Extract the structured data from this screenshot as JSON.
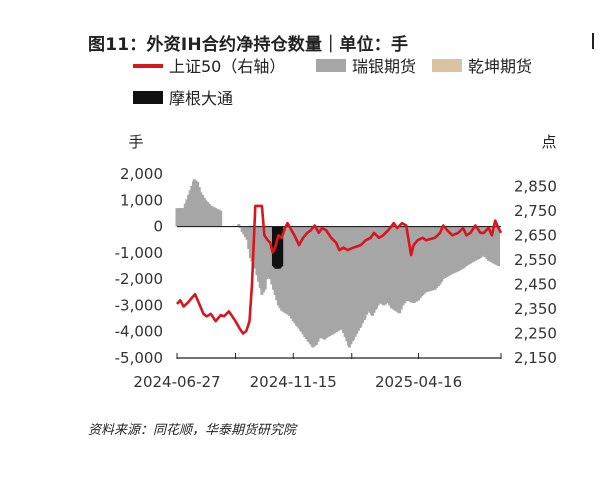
{
  "title": "图11：外资IH合约净持仓数量｜单位：手",
  "source": "资料来源：同花顺，华泰期货研究院",
  "chart_data": {
    "type": "bar+line",
    "left_axis_label": "手",
    "right_axis_label": "点",
    "ylim_left": [
      -5000,
      2000
    ],
    "yticks_left": [
      "2,000",
      "1,000",
      "0",
      "-1,000",
      "-2,000",
      "-3,000",
      "-4,000",
      "-5,000"
    ],
    "ylim_right": [
      2150,
      2900
    ],
    "yticks_right": [
      "2,850",
      "2,750",
      "2,650",
      "2,550",
      "2,450",
      "2,350",
      "2,250",
      "2,150"
    ],
    "x_ticks": [
      "2024-06-27",
      "2024-11-15",
      "2025-04-16"
    ],
    "x_range": [
      "2024-06-27",
      "2025-07-25"
    ],
    "legend": [
      {
        "name": "上证50（右轴）",
        "color": "#d7161e",
        "kind": "line"
      },
      {
        "name": "瑞银期货",
        "color": "#a6a6a6",
        "kind": "bar"
      },
      {
        "name": "乾坤期货",
        "color": "#d9c3a0",
        "kind": "bar"
      },
      {
        "name": "摩根大通",
        "color": "#111111",
        "kind": "bar"
      }
    ],
    "series_bar_ubs": [
      [
        "2024-06-27",
        700
      ],
      [
        "2024-07-02",
        700
      ],
      [
        "2024-07-05",
        700
      ],
      [
        "2024-07-18",
        1800
      ],
      [
        "2024-07-22",
        1700
      ],
      [
        "2024-07-26",
        1300
      ],
      [
        "2024-08-01",
        1000
      ],
      [
        "2024-08-07",
        800
      ],
      [
        "2024-08-13",
        700
      ],
      [
        "2024-08-19",
        600
      ],
      [
        "2024-09-10",
        100
      ],
      [
        "2024-09-14",
        -200
      ],
      [
        "2024-09-20",
        -500
      ],
      [
        "2024-09-24",
        -1200
      ],
      [
        "2024-09-30",
        -1600
      ],
      [
        "2024-10-08",
        -2600
      ],
      [
        "2024-10-12",
        -2400
      ],
      [
        "2024-10-15",
        -1800
      ],
      [
        "2024-10-18",
        -2000
      ],
      [
        "2024-10-24",
        -2600
      ],
      [
        "2024-10-28",
        -3000
      ],
      [
        "2024-11-01",
        -3200
      ],
      [
        "2024-11-06",
        -3300
      ],
      [
        "2024-11-11",
        -3400
      ],
      [
        "2024-11-15",
        -3600
      ],
      [
        "2024-11-20",
        -3800
      ],
      [
        "2024-11-25",
        -4000
      ],
      [
        "2024-11-29",
        -4200
      ],
      [
        "2024-12-04",
        -4400
      ],
      [
        "2024-12-09",
        -4600
      ],
      [
        "2024-12-13",
        -4500
      ],
      [
        "2024-12-18",
        -4200
      ],
      [
        "2024-12-23",
        -4300
      ],
      [
        "2024-12-27",
        -4200
      ],
      [
        "2025-01-02",
        -4100
      ],
      [
        "2025-01-07",
        -4000
      ],
      [
        "2025-01-13",
        -3900
      ],
      [
        "2025-01-17",
        -4200
      ],
      [
        "2025-01-22",
        -4600
      ],
      [
        "2025-01-27",
        -4300
      ],
      [
        "2025-02-05",
        -3800
      ],
      [
        "2025-02-10",
        -3500
      ],
      [
        "2025-02-14",
        -3200
      ],
      [
        "2025-02-19",
        -3400
      ],
      [
        "2025-02-24",
        -3100
      ],
      [
        "2025-02-28",
        -2900
      ],
      [
        "2025-03-05",
        -3000
      ],
      [
        "2025-03-10",
        -2900
      ],
      [
        "2025-03-14",
        -3100
      ],
      [
        "2025-03-19",
        -3200
      ],
      [
        "2025-03-24",
        -3300
      ],
      [
        "2025-03-28",
        -3000
      ],
      [
        "2025-04-02",
        -2800
      ],
      [
        "2025-04-08",
        -2900
      ],
      [
        "2025-04-11",
        -2900
      ],
      [
        "2025-04-16",
        -2800
      ],
      [
        "2025-04-21",
        -2600
      ],
      [
        "2025-04-25",
        -2500
      ],
      [
        "2025-05-06",
        -2400
      ],
      [
        "2025-05-12",
        -2200
      ],
      [
        "2025-05-16",
        -2000
      ],
      [
        "2025-05-21",
        -1900
      ],
      [
        "2025-05-27",
        -1800
      ],
      [
        "2025-06-03",
        -1700
      ],
      [
        "2025-06-09",
        -1600
      ],
      [
        "2025-06-13",
        -1500
      ],
      [
        "2025-06-18",
        -1400
      ],
      [
        "2025-06-24",
        -1300
      ],
      [
        "2025-06-30",
        -1200
      ],
      [
        "2025-07-04",
        -1100
      ],
      [
        "2025-07-10",
        -1300
      ],
      [
        "2025-07-16",
        -1400
      ],
      [
        "2025-07-22",
        -1500
      ]
    ],
    "series_bar_jpm": [
      [
        "2024-10-22",
        -1500
      ],
      [
        "2024-10-25",
        -1600
      ],
      [
        "2024-10-29",
        -1600
      ],
      [
        "2024-11-01",
        -1500
      ]
    ],
    "series_bar_qiankun": [],
    "series_line_sse50": [
      [
        "2024-06-27",
        2370
      ],
      [
        "2024-07-01",
        2385
      ],
      [
        "2024-07-05",
        2360
      ],
      [
        "2024-07-10",
        2375
      ],
      [
        "2024-07-15",
        2395
      ],
      [
        "2024-07-19",
        2410
      ],
      [
        "2024-07-24",
        2370
      ],
      [
        "2024-07-29",
        2330
      ],
      [
        "2024-08-02",
        2320
      ],
      [
        "2024-08-07",
        2330
      ],
      [
        "2024-08-13",
        2300
      ],
      [
        "2024-08-19",
        2325
      ],
      [
        "2024-08-23",
        2320
      ],
      [
        "2024-08-29",
        2340
      ],
      [
        "2024-09-02",
        2320
      ],
      [
        "2024-09-06",
        2300
      ],
      [
        "2024-09-11",
        2270
      ],
      [
        "2024-09-15",
        2250
      ],
      [
        "2024-09-19",
        2260
      ],
      [
        "2024-09-23",
        2300
      ],
      [
        "2024-09-26",
        2450
      ],
      [
        "2024-09-30",
        2770
      ],
      [
        "2024-10-08",
        2770
      ],
      [
        "2024-10-11",
        2650
      ],
      [
        "2024-10-15",
        2630
      ],
      [
        "2024-10-18",
        2620
      ],
      [
        "2024-10-21",
        2580
      ],
      [
        "2024-10-24",
        2600
      ],
      [
        "2024-10-28",
        2650
      ],
      [
        "2024-11-01",
        2640
      ],
      [
        "2024-11-05",
        2680
      ],
      [
        "2024-11-08",
        2700
      ],
      [
        "2024-11-13",
        2670
      ],
      [
        "2024-11-18",
        2640
      ],
      [
        "2024-11-22",
        2610
      ],
      [
        "2024-11-27",
        2640
      ],
      [
        "2024-12-02",
        2660
      ],
      [
        "2024-12-06",
        2670
      ],
      [
        "2024-12-11",
        2690
      ],
      [
        "2024-12-16",
        2660
      ],
      [
        "2024-12-20",
        2680
      ],
      [
        "2024-12-25",
        2670
      ],
      [
        "2024-12-31",
        2640
      ],
      [
        "2025-01-06",
        2620
      ],
      [
        "2025-01-10",
        2590
      ],
      [
        "2025-01-15",
        2600
      ],
      [
        "2025-01-20",
        2590
      ],
      [
        "2025-01-27",
        2600
      ],
      [
        "2025-02-05",
        2610
      ],
      [
        "2025-02-11",
        2630
      ],
      [
        "2025-02-17",
        2640
      ],
      [
        "2025-02-21",
        2660
      ],
      [
        "2025-02-27",
        2640
      ],
      [
        "2025-03-04",
        2650
      ],
      [
        "2025-03-10",
        2670
      ],
      [
        "2025-03-17",
        2700
      ],
      [
        "2025-03-21",
        2680
      ],
      [
        "2025-03-27",
        2700
      ],
      [
        "2025-04-01",
        2690
      ],
      [
        "2025-04-07",
        2570
      ],
      [
        "2025-04-10",
        2610
      ],
      [
        "2025-04-15",
        2630
      ],
      [
        "2025-04-21",
        2640
      ],
      [
        "2025-04-25",
        2630
      ],
      [
        "2025-05-06",
        2640
      ],
      [
        "2025-05-12",
        2660
      ],
      [
        "2025-05-16",
        2690
      ],
      [
        "2025-05-21",
        2670
      ],
      [
        "2025-05-27",
        2650
      ],
      [
        "2025-06-03",
        2660
      ],
      [
        "2025-06-09",
        2680
      ],
      [
        "2025-06-13",
        2650
      ],
      [
        "2025-06-18",
        2660
      ],
      [
        "2025-06-24",
        2690
      ],
      [
        "2025-06-30",
        2660
      ],
      [
        "2025-07-04",
        2660
      ],
      [
        "2025-07-10",
        2680
      ],
      [
        "2025-07-14",
        2650
      ],
      [
        "2025-07-18",
        2710
      ],
      [
        "2025-07-22",
        2680
      ],
      [
        "2025-07-25",
        2660
      ]
    ]
  }
}
